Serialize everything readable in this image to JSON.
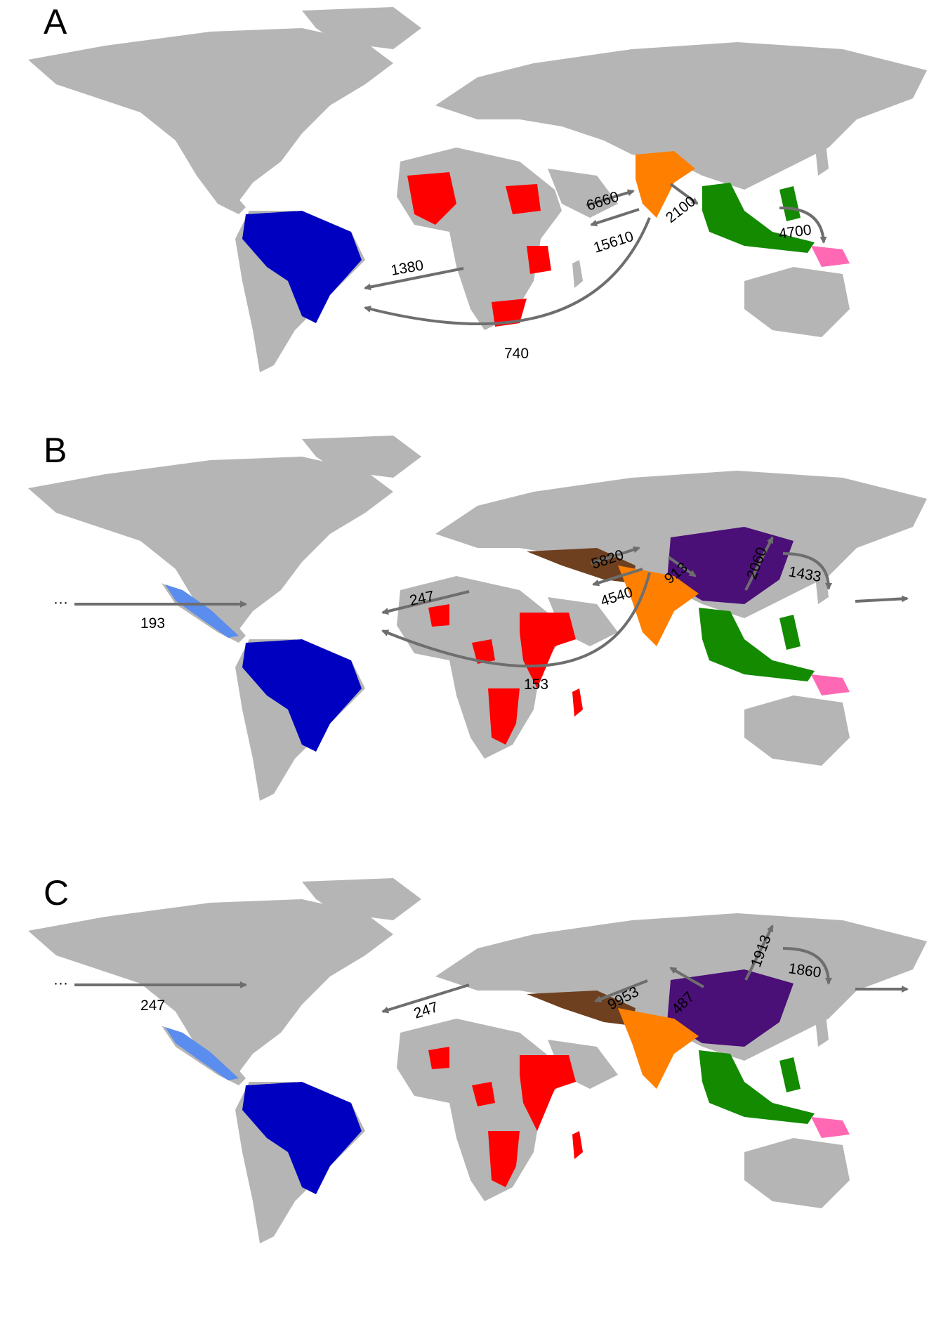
{
  "colors": {
    "land": "#b5b5b5",
    "arrow": "#6e6e6e",
    "red": "#ff0000",
    "orange": "#ff8000",
    "green": "#138a00",
    "pink": "#ff69b4",
    "blue": "#0000c0",
    "light_blue": "#5b8def",
    "brown": "#6e4020",
    "purple": "#4b0f78"
  },
  "panels": [
    {
      "letter": "A",
      "flows": [
        {
          "value": "6660"
        },
        {
          "value": "15610"
        },
        {
          "value": "2100"
        },
        {
          "value": "4700"
        },
        {
          "value": "1380"
        },
        {
          "value": "740"
        }
      ]
    },
    {
      "letter": "B",
      "flows": [
        {
          "value": "5820"
        },
        {
          "value": "4540"
        },
        {
          "value": "913"
        },
        {
          "value": "2060"
        },
        {
          "value": "1433"
        },
        {
          "value": "247"
        },
        {
          "value": "193"
        },
        {
          "value": "153"
        }
      ]
    },
    {
      "letter": "C",
      "flows": [
        {
          "value": "9953"
        },
        {
          "value": "487"
        },
        {
          "value": "1913"
        },
        {
          "value": "1860"
        },
        {
          "value": "247"
        },
        {
          "value": "247"
        }
      ]
    }
  ]
}
